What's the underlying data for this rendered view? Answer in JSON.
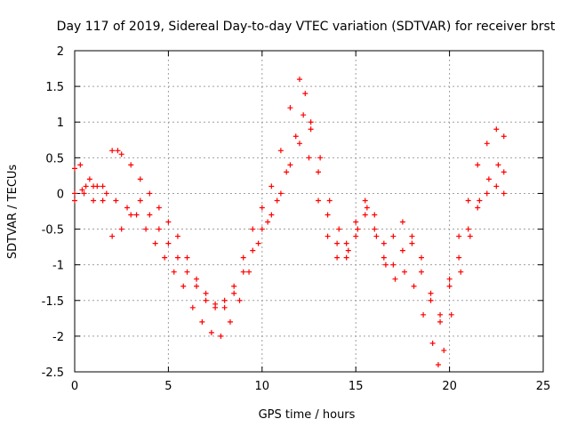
{
  "chart_data": {
    "type": "scatter",
    "title": "Day 117 of 2019, Sidereal Day-to-day VTEC variation (SDTVAR) for receiver brst",
    "xlabel": "GPS time / hours",
    "ylabel": "SDTVAR / TECUs",
    "xlim": [
      0,
      25
    ],
    "ylim": [
      -2.5,
      2
    ],
    "xticks": [
      0,
      5,
      10,
      15,
      20,
      25
    ],
    "yticks": [
      -2.5,
      -2,
      -1.5,
      -1,
      -0.5,
      0,
      0.5,
      1,
      1.5,
      2
    ],
    "grid": true,
    "marker": "plus",
    "color": "#ff0000",
    "series": [
      {
        "x": [
          0.0,
          0.3,
          0.6,
          1.0,
          1.5,
          2.0,
          2.3,
          2.5,
          3.0,
          3.5,
          4.0,
          4.5,
          5.0,
          5.5,
          6.0,
          6.5,
          7.0,
          7.5,
          8.0,
          8.5,
          9.0,
          9.5,
          10.0,
          10.5,
          11.0,
          11.5,
          12.0,
          12.3,
          12.6,
          13.0,
          13.5,
          14.0,
          14.5,
          15.0,
          15.5,
          16.0,
          16.5,
          17.0,
          17.5,
          18.0,
          18.5,
          19.0,
          19.5,
          20.0,
          20.5,
          21.0,
          21.5,
          22.0,
          22.5,
          22.9
        ],
        "y": [
          0.35,
          0.4,
          0.1,
          -0.1,
          0.1,
          0.6,
          0.6,
          0.55,
          0.4,
          0.2,
          -0.3,
          -0.5,
          -0.7,
          -0.9,
          -1.1,
          -1.3,
          -1.5,
          -1.55,
          -1.5,
          -1.3,
          -0.9,
          -0.5,
          -0.2,
          0.1,
          0.6,
          1.2,
          1.6,
          1.4,
          0.9,
          0.3,
          -0.3,
          -0.7,
          -0.9,
          -0.6,
          -0.3,
          -0.5,
          -0.9,
          -1.0,
          -0.8,
          -0.6,
          -0.9,
          -1.5,
          -1.8,
          -1.2,
          -0.6,
          -0.1,
          0.4,
          0.7,
          0.9,
          0.8
        ]
      },
      {
        "x": [
          0.0,
          0.4,
          0.8,
          1.2,
          1.7,
          2.2,
          2.8,
          3.3,
          3.8,
          4.3,
          4.8,
          5.3,
          5.8,
          6.3,
          6.8,
          7.3,
          7.8,
          8.3,
          8.8,
          9.3,
          9.8,
          10.3,
          10.8,
          11.3,
          11.8,
          12.2,
          12.6,
          13.1,
          13.6,
          14.1,
          14.6,
          15.1,
          15.6,
          16.1,
          16.6,
          17.1,
          17.6,
          18.1,
          18.6,
          19.1,
          19.4,
          19.7,
          20.1,
          20.6,
          21.1,
          21.6,
          22.1,
          22.6,
          22.9
        ],
        "y": [
          0.0,
          0.05,
          0.2,
          0.1,
          0.0,
          -0.1,
          -0.2,
          -0.3,
          -0.5,
          -0.7,
          -0.9,
          -1.1,
          -1.3,
          -1.6,
          -1.8,
          -1.95,
          -2.0,
          -1.8,
          -1.5,
          -1.1,
          -0.7,
          -0.4,
          -0.1,
          0.3,
          0.8,
          1.1,
          1.0,
          0.5,
          -0.1,
          -0.5,
          -0.8,
          -0.5,
          -0.2,
          -0.6,
          -1.0,
          -1.2,
          -1.1,
          -1.3,
          -1.7,
          -2.1,
          -2.4,
          -2.2,
          -1.7,
          -1.1,
          -0.6,
          -0.1,
          0.2,
          0.4,
          0.3
        ]
      },
      {
        "x": [
          0.0,
          0.5,
          1.0,
          1.5,
          2.0,
          2.5,
          3.0,
          3.5,
          4.0,
          4.5,
          5.0,
          5.5,
          6.0,
          6.5,
          7.0,
          7.5,
          8.0,
          8.5,
          9.0,
          9.5,
          10.0,
          10.5,
          11.0,
          11.5,
          12.0,
          12.5,
          13.0,
          13.5,
          14.0,
          14.5,
          15.0,
          15.5,
          16.0,
          16.5,
          17.0,
          17.5,
          18.0,
          18.5,
          19.0,
          19.5,
          20.0,
          20.5,
          21.0,
          21.5,
          22.0,
          22.5,
          22.9
        ],
        "y": [
          -0.1,
          0.0,
          0.1,
          -0.1,
          -0.6,
          -0.5,
          -0.3,
          -0.1,
          0.0,
          -0.2,
          -0.4,
          -0.6,
          -0.9,
          -1.2,
          -1.4,
          -1.6,
          -1.6,
          -1.4,
          -1.1,
          -0.8,
          -0.5,
          -0.3,
          0.0,
          0.4,
          0.7,
          0.5,
          -0.1,
          -0.6,
          -0.9,
          -0.7,
          -0.4,
          -0.1,
          -0.3,
          -0.7,
          -0.6,
          -0.4,
          -0.7,
          -1.1,
          -1.4,
          -1.7,
          -1.3,
          -0.9,
          -0.5,
          -0.2,
          0.0,
          0.1,
          0.0
        ]
      }
    ]
  }
}
